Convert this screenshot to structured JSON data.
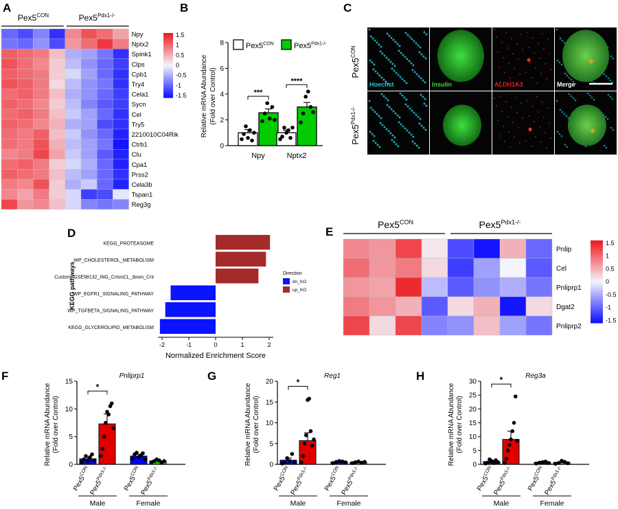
{
  "panel_labels": [
    "A",
    "B",
    "C",
    "D",
    "E",
    "F",
    "G",
    "H"
  ],
  "legend_groups": {
    "con_base": "Pex5",
    "con_sup": "CON",
    "ko_base": "Pex5",
    "ko_sup": "Pdx1-/-"
  },
  "colors": {
    "blue_bar": "#0000ff",
    "red_bar": "#e00000",
    "green_bar": "#00cc00",
    "heat_red": "#ee1c23",
    "heat_white": "#f4f4fb",
    "heat_blue": "#1414ff",
    "kegg_up": "#a52a2a",
    "kegg_dn": "#0a14ff"
  },
  "chart_data": [
    {
      "id": "A",
      "type": "heatmap",
      "column_groups": [
        {
          "name": "Pex5CON",
          "n": 4
        },
        {
          "name": "Pex5Pdx1-/-",
          "n": 4
        }
      ],
      "rows": [
        "Npy",
        "Nptx2",
        "Spink1",
        "Clps",
        "Cpb1",
        "Try4",
        "Cela1",
        "Sycn",
        "Cel",
        "Try5",
        "2210010C04Rik",
        "Ctrb1",
        "Clu",
        "Cpa1",
        "Prss2",
        "Cela3b",
        "Tspan1",
        "Reg3g"
      ],
      "colorbar_ticks": [
        "1.5",
        "1",
        "0.5",
        "0",
        "-0.5",
        "-1",
        "-1.5"
      ],
      "values": [
        [
          -1.0,
          -1.2,
          -0.8,
          -1.4,
          0.8,
          1.2,
          1.0,
          0.6
        ],
        [
          -0.9,
          -1.0,
          -0.7,
          -1.2,
          0.7,
          1.0,
          1.4,
          0.9
        ],
        [
          1.1,
          1.0,
          0.9,
          0.4,
          -0.5,
          -0.6,
          -0.9,
          -1.4
        ],
        [
          1.2,
          1.0,
          0.8,
          0.3,
          -0.4,
          -0.7,
          -1.0,
          -1.3
        ],
        [
          1.1,
          1.0,
          0.9,
          0.3,
          -0.2,
          -0.6,
          -1.0,
          -1.4
        ],
        [
          1.2,
          1.1,
          0.9,
          0.2,
          -0.4,
          -0.7,
          -0.9,
          -1.4
        ],
        [
          1.0,
          1.1,
          0.9,
          0.4,
          -0.5,
          -0.7,
          -1.0,
          -1.3
        ],
        [
          1.1,
          1.0,
          0.8,
          0.3,
          -0.4,
          -0.8,
          -1.1,
          -1.3
        ],
        [
          1.0,
          1.1,
          0.9,
          0.4,
          -0.3,
          -0.6,
          -1.0,
          -1.4
        ],
        [
          1.1,
          1.0,
          0.8,
          0.5,
          -0.5,
          -0.6,
          -1.2,
          -1.4
        ],
        [
          1.0,
          0.9,
          1.1,
          0.4,
          -0.3,
          -0.7,
          -1.0,
          -1.5
        ],
        [
          1.0,
          0.9,
          1.2,
          0.5,
          -0.4,
          -0.6,
          -0.9,
          -1.6
        ],
        [
          0.8,
          0.9,
          1.3,
          0.6,
          -0.3,
          -0.6,
          -1.1,
          -1.5
        ],
        [
          1.0,
          1.1,
          0.9,
          0.3,
          -0.2,
          -0.5,
          -1.0,
          -1.5
        ],
        [
          1.1,
          1.0,
          0.9,
          0.4,
          -0.4,
          -0.6,
          -1.0,
          -1.4
        ],
        [
          0.9,
          0.8,
          1.2,
          0.3,
          -0.5,
          -0.3,
          -1.0,
          -1.5
        ],
        [
          0.8,
          0.6,
          0.9,
          0.3,
          -0.2,
          -1.3,
          -1.2,
          -0.1
        ],
        [
          1.3,
          0.7,
          0.8,
          0.4,
          -0.2,
          -0.8,
          -0.9,
          -0.8
        ]
      ]
    },
    {
      "id": "B",
      "type": "bar",
      "ylabel": "Relative mRNA Abundance (Fold over Control)",
      "ylim": [
        0,
        8
      ],
      "yticks": [
        "0",
        "2",
        "4",
        "6",
        "8"
      ],
      "categories": [
        "Npy",
        "Nptx2"
      ],
      "series": [
        {
          "name": "Pex5CON",
          "values": [
            1.0,
            1.0
          ],
          "errors": [
            0.25,
            0.2
          ],
          "points": [
            [
              0.5,
              0.9,
              1.5,
              0.6,
              1.2,
              0.4,
              1.0
            ],
            [
              0.5,
              0.7,
              1.4,
              1.0,
              1.2,
              0.6,
              1.4
            ]
          ]
        },
        {
          "name": "Pex5Pdx1-/-",
          "values": [
            2.55,
            3.0
          ],
          "errors": [
            0.3,
            0.35
          ],
          "points": [
            [
              1.9,
              2.5,
              3.3,
              2.1,
              3.0,
              2.0
            ],
            [
              1.8,
              2.5,
              3.8,
              4.2,
              3.0,
              2.6
            ]
          ]
        }
      ],
      "significance": [
        "***",
        "****"
      ]
    },
    {
      "id": "C",
      "type": "table",
      "columns": [
        "Hoechst",
        "Insulin",
        "ALDH1A3",
        "Merge"
      ],
      "rows": [
        "Pex5CON",
        "Pex5Pdx1-/-"
      ]
    },
    {
      "id": "D",
      "type": "bar",
      "orientation": "horizontal",
      "ylabel": "KEGG pathways",
      "xlabel": "Normalized Enrichment Score",
      "xlim": [
        -2,
        2
      ],
      "xticks": [
        "-2",
        "-1",
        "0",
        "1",
        "2"
      ],
      "categories": [
        "KEGG_PROTEASOME",
        "WP_CHOLESTEROL_METABOLISM",
        "Custom_GSE98132_ING_CntvsCL_down_Cnt",
        "WP_EGFR1_SIGNALING_PATHWAY",
        "WP_TGFBETA_SIGNALING_PATHWAY",
        "KEGG_GLYCEROLIPID_METABOLISM"
      ],
      "values": [
        2.03,
        1.88,
        1.6,
        -1.68,
        -1.88,
        -2.08
      ],
      "legend_title": "Direction",
      "legend": [
        "dn_KO",
        "up_KO"
      ]
    },
    {
      "id": "E",
      "type": "heatmap",
      "column_groups": [
        {
          "name": "Pex5CON",
          "n": 4
        },
        {
          "name": "Pex5Pdx1-/-",
          "n": 4
        }
      ],
      "rows": [
        "Pnlip",
        "Cel",
        "Pnliprp1",
        "Dgat2",
        "Pnliprp2"
      ],
      "colorbar_ticks": [
        "1.5",
        "1",
        "0.5",
        "0",
        "-0.5",
        "-1",
        "-1.5"
      ],
      "values": [
        [
          0.8,
          0.7,
          1.3,
          0.1,
          -1.2,
          -1.6,
          0.5,
          -1.0
        ],
        [
          1.0,
          0.7,
          0.9,
          0.2,
          -1.3,
          -0.6,
          0.0,
          -1.1
        ],
        [
          0.7,
          0.6,
          1.5,
          -0.4,
          -1.1,
          -0.7,
          -0.5,
          -0.9
        ],
        [
          0.9,
          0.7,
          0.5,
          -1.1,
          0.2,
          0.5,
          -1.6,
          0.2
        ],
        [
          1.3,
          0.2,
          1.3,
          -0.8,
          -0.7,
          0.4,
          -0.6,
          -0.9
        ]
      ]
    },
    {
      "id": "F",
      "type": "bar",
      "title": "Pnliprp1",
      "ylabel": "Relative mRNA Abundance (Fold over Control)",
      "ylim": [
        0,
        15
      ],
      "yticks": [
        "0",
        "5",
        "10",
        "15"
      ],
      "categories": [
        "Pex5CON",
        "Pex5Pdx1-/-",
        "Pex5CON",
        "Pex5Pdx1-/-"
      ],
      "groups": [
        "Male",
        "Female"
      ],
      "values": [
        1.0,
        7.3,
        1.5,
        0.6
      ],
      "errors": [
        0.3,
        1.8,
        0.3,
        0.15
      ],
      "bar_colors": [
        "#0000ff",
        "#e00000",
        "#0000ff",
        "#00cc00"
      ],
      "points": [
        [
          0.4,
          0.9,
          1.5,
          0.6,
          1.3,
          1.8,
          0.7
        ],
        [
          1.5,
          2.8,
          5.0,
          7.5,
          9.5,
          9.0,
          10.5,
          11.0,
          6.5
        ],
        [
          1.0,
          1.8,
          2.1,
          1.3,
          1.6,
          2.0,
          0.9
        ],
        [
          0.4,
          0.6,
          0.9,
          0.7,
          0.3,
          0.6
        ]
      ],
      "significance": "*"
    },
    {
      "id": "G",
      "type": "bar",
      "title": "Reg1",
      "ylabel": "Relative mRNA Abundance (Fold over Control)",
      "ylim": [
        0,
        20
      ],
      "yticks": [
        "0",
        "5",
        "10",
        "15",
        "20"
      ],
      "categories": [
        "Pex5CON",
        "Pex5Pdx1-/-",
        "Pex5CON",
        "Pex5Pdx1-/-"
      ],
      "groups": [
        "Male",
        "Female"
      ],
      "values": [
        1.0,
        5.7,
        0.6,
        0.5
      ],
      "errors": [
        0.5,
        1.9,
        0.15,
        0.1
      ],
      "bar_colors": [
        "#0000ff",
        "#e00000",
        "#0000ff",
        "#00cc00"
      ],
      "points": [
        [
          0.2,
          0.5,
          1.5,
          0.8,
          2.5,
          0.4
        ],
        [
          0.5,
          2.0,
          5.0,
          7.0,
          15.5,
          15.8,
          8.0,
          4.5,
          6.0
        ],
        [
          0.3,
          0.6,
          0.8,
          0.7,
          0.5
        ],
        [
          0.3,
          0.5,
          0.7,
          0.4,
          0.6
        ]
      ],
      "significance": "*"
    },
    {
      "id": "H",
      "type": "bar",
      "title": "Reg3a",
      "ylabel": "Relative mRNA Abundance (Fold over Control)",
      "ylim": [
        0,
        30
      ],
      "yticks": [
        "0",
        "5",
        "10",
        "15",
        "20",
        "25",
        "30"
      ],
      "categories": [
        "Pex5CON",
        "Pex5Pdx1-/-",
        "Pex5CON",
        "Pex5Pdx1-/-"
      ],
      "groups": [
        "Male",
        "Female"
      ],
      "values": [
        1.0,
        9.0,
        0.7,
        0.7
      ],
      "errors": [
        0.4,
        3.0,
        0.2,
        0.2
      ],
      "bar_colors": [
        "#0000ff",
        "#e00000",
        "#0000ff",
        "#00cc00"
      ],
      "points": [
        [
          0.3,
          0.6,
          1.8,
          1.2,
          0.5,
          1.5,
          0.8
        ],
        [
          0.5,
          2.0,
          5.0,
          7.0,
          9.0,
          12.0,
          15.0,
          24.5,
          8.5
        ],
        [
          0.3,
          0.6,
          0.8,
          1.0,
          0.5
        ],
        [
          0.2,
          0.5,
          1.3,
          0.9,
          0.4
        ]
      ],
      "significance": "*"
    }
  ]
}
